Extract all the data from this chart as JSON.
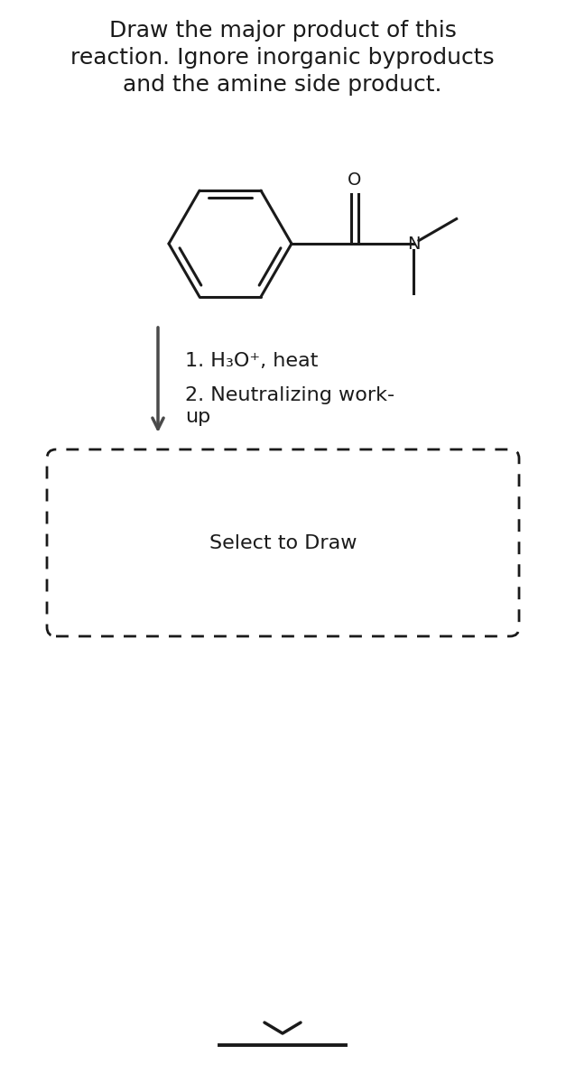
{
  "title_line1": "Draw the major product of this",
  "title_line2": "reaction. Ignore inorganic byproducts",
  "title_line3": "and the amine side product.",
  "step1": "1. H₃O⁺, heat",
  "step2a": "2. Neutralizing work-",
  "step2b": "up",
  "select_text": "Select to Draw",
  "bg_color": "#ffffff",
  "line_color": "#1a1a1a",
  "text_color": "#1a1a1a",
  "arrow_color": "#4a4a4a",
  "title_fontsize": 18,
  "step_fontsize": 16,
  "select_fontsize": 16,
  "mol_label_fontsize": 14
}
